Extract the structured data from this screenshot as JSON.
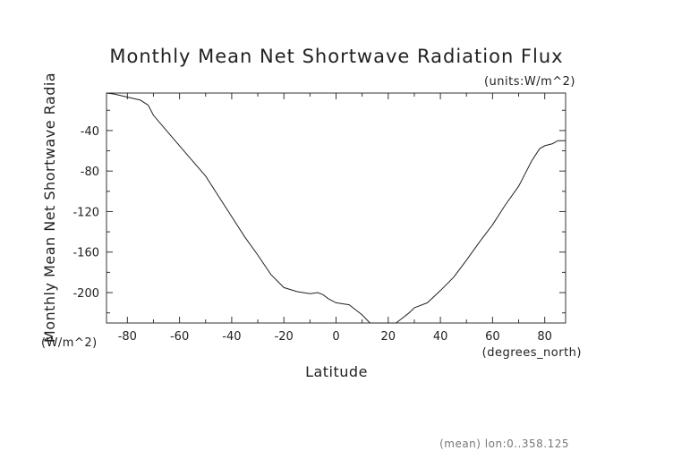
{
  "chart_data": {
    "type": "line",
    "title": "Monthly Mean Net Shortwave Radiation Flux",
    "units_label": "(units:W/m^2)",
    "xlabel": "Latitude",
    "x_units_label": "(degrees_north)",
    "ylabel": "Monthly Mean Net Shortwave Radia",
    "y_units_label": "(W/m^2)",
    "footnote": "(mean) lon:0..358.125",
    "xlim": [
      -88,
      88
    ],
    "ylim": [
      -230,
      -3
    ],
    "xticks": [
      -80,
      -60,
      -40,
      -20,
      0,
      20,
      40,
      60,
      80
    ],
    "yticks": [
      -40,
      -80,
      -120,
      -160,
      -200
    ],
    "grid": false,
    "series": [
      {
        "x": [
          -88,
          -85,
          -80,
          -75,
          -72,
          -70,
          -65,
          -60,
          -55,
          -50,
          -45,
          -40,
          -35,
          -30,
          -25,
          -20,
          -15,
          -10,
          -7,
          -5,
          -3,
          0,
          5,
          10,
          13,
          15,
          20,
          23,
          25,
          28,
          30,
          35,
          40,
          45,
          50,
          55,
          60,
          65,
          70,
          72,
          75,
          78,
          80,
          83,
          85,
          88
        ],
        "y": [
          -3,
          -4,
          -7,
          -10,
          -15,
          -25,
          -40,
          -55,
          -70,
          -85,
          -105,
          -125,
          -145,
          -163,
          -182,
          -195,
          -199,
          -201,
          -200,
          -202,
          -206,
          -210,
          -212,
          -222,
          -230,
          -230,
          -230,
          -230,
          -226,
          -220,
          -215,
          -210,
          -198,
          -185,
          -168,
          -150,
          -133,
          -113,
          -95,
          -85,
          -70,
          -58,
          -55,
          -53,
          -50,
          -50
        ]
      }
    ]
  }
}
